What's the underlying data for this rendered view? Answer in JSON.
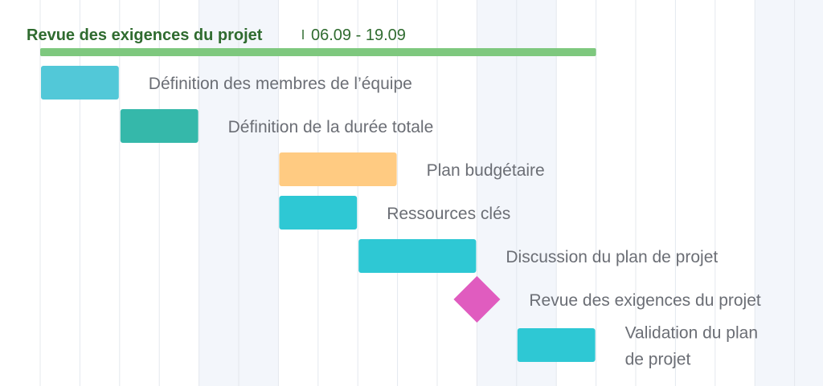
{
  "chart_data": {
    "type": "gantt",
    "title": "",
    "summary": {
      "name": "Revue des exigences du projet",
      "dates": "06.09 - 19.09",
      "start": 0,
      "end": 14,
      "color": "#7ec87e",
      "title_color": "#2f6b2f"
    },
    "axis": {
      "unit": "day",
      "visible_days": 20,
      "weekend_day_ranges": [
        [
          4,
          6
        ],
        [
          11,
          13
        ],
        [
          18,
          20
        ]
      ],
      "grid": true
    },
    "tasks": [
      {
        "name": "Définition des membres de l’équipe",
        "lines": [
          "Définition des membres de l’équipe"
        ],
        "start": 0,
        "end": 2,
        "type": "bar",
        "color": "#52c8d8"
      },
      {
        "name": "Définition de la durée totale",
        "lines": [
          "Définition de la durée totale"
        ],
        "start": 2,
        "end": 4,
        "type": "bar",
        "color": "#35b8aa"
      },
      {
        "name": "Plan budgétaire",
        "lines": [
          "Plan budgétaire"
        ],
        "start": 6,
        "end": 9,
        "type": "bar",
        "color": "#ffcb82"
      },
      {
        "name": "Ressources clés",
        "lines": [
          "Ressources clés"
        ],
        "start": 6,
        "end": 8,
        "type": "bar",
        "color": "#2ec8d4"
      },
      {
        "name": "Discussion du plan de projet",
        "lines": [
          "Discussion du plan de projet"
        ],
        "start": 8,
        "end": 11,
        "type": "bar",
        "color": "#2ec8d4"
      },
      {
        "name": "Revue des exigences du projet",
        "lines": [
          "Revue des exigences du projet"
        ],
        "start": 11,
        "end": 11,
        "type": "milestone",
        "color": "#e05cbf"
      },
      {
        "name": "Validation du plan de projet",
        "lines": [
          "Validation du plan",
          "de projet"
        ],
        "start": 12,
        "end": 14,
        "type": "bar",
        "color": "#2ec8d4"
      }
    ]
  }
}
